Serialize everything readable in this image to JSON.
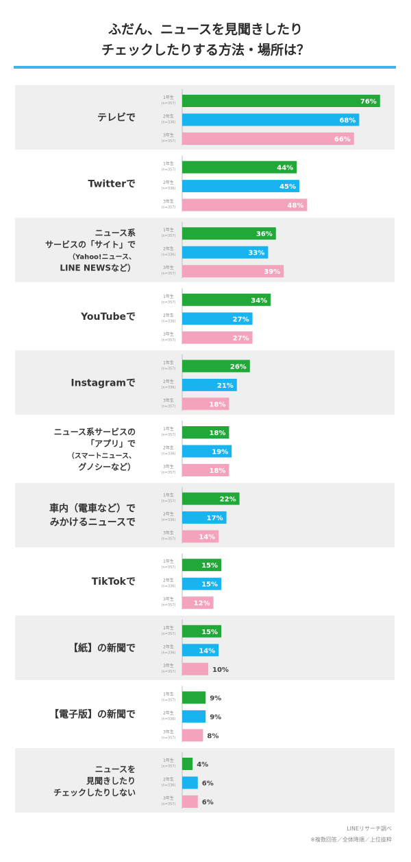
{
  "header": {
    "title_line1": "ふだん、ニュースを見聞きしたり",
    "title_line2": "チェックしたりする方法・場所は？"
  },
  "footer": {
    "source": "LINEリサーチ調べ",
    "note": "※複数回答／全体降順／上位抜粋"
  },
  "colors": {
    "grade1": "#22a838",
    "grade2": "#19b3ef",
    "grade3": "#f4a3bc",
    "band": "#efefef",
    "rule": "#3fb6e6"
  },
  "chart_data": {
    "type": "bar",
    "orientation": "horizontal",
    "series_labels": [
      {
        "grade": "1年生",
        "n": "(n=357)"
      },
      {
        "grade": "2年生",
        "n": "(n=336)"
      },
      {
        "grade": "3年生",
        "n": "(n=357)"
      }
    ],
    "categories": [
      {
        "lines": [
          "テレビで"
        ],
        "values": [
          76,
          68,
          66
        ]
      },
      {
        "lines": [
          "Twitterで"
        ],
        "values": [
          44,
          45,
          48
        ]
      },
      {
        "lines": [
          "ニュース系",
          "サービスの「サイト」で",
          "（Yahoo!ニュース、",
          "LINE NEWSなど）"
        ],
        "values": [
          36,
          33,
          39
        ]
      },
      {
        "lines": [
          "YouTubeで"
        ],
        "values": [
          34,
          27,
          27
        ]
      },
      {
        "lines": [
          "Instagramで"
        ],
        "values": [
          26,
          21,
          18
        ]
      },
      {
        "lines": [
          "ニュース系サービスの",
          "「アプリ」で",
          "（スマートニュース、",
          "グノシーなど）"
        ],
        "values": [
          18,
          19,
          18
        ]
      },
      {
        "lines": [
          "車内（電車など）で",
          "みかけるニュースで"
        ],
        "values": [
          22,
          17,
          14
        ]
      },
      {
        "lines": [
          "TikTokで"
        ],
        "values": [
          15,
          15,
          12
        ]
      },
      {
        "lines": [
          "【紙】の新聞で"
        ],
        "values": [
          15,
          14,
          10
        ]
      },
      {
        "lines": [
          "【電子版】の新聞で"
        ],
        "values": [
          9,
          9,
          8
        ]
      },
      {
        "lines": [
          "ニュースを",
          "見聞きしたり",
          "チェックしたりしない"
        ],
        "values": [
          4,
          6,
          6
        ]
      }
    ],
    "value_suffix": "%",
    "xlim": [
      0,
      100
    ]
  }
}
